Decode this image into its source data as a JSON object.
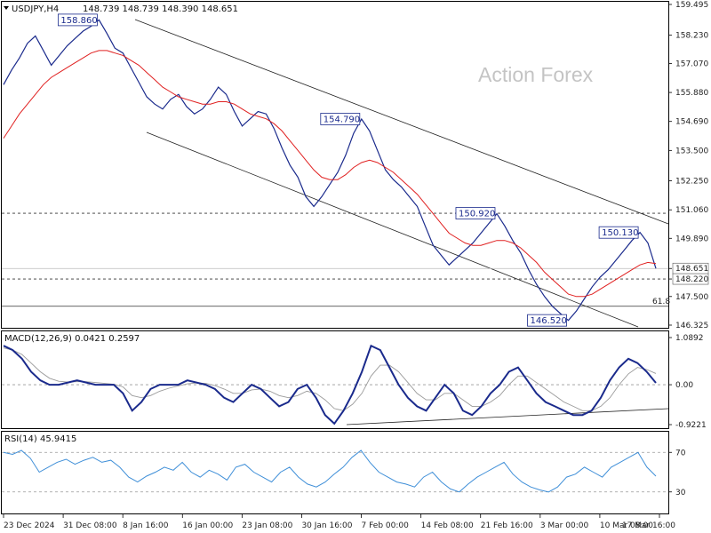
{
  "chart_data": {
    "type": "line",
    "symbol_header": "USDJPY,H4",
    "ohlc_header": "148.739 148.739 148.390 148.651",
    "watermark": "Action Forex",
    "x_labels": [
      "23 Dec 2024",
      "31 Dec 08:00",
      "8 Jan 16:00",
      "16 Jan 00:00",
      "23 Jan 08:00",
      "30 Jan 16:00",
      "7 Feb 00:00",
      "14 Feb 08:00",
      "21 Feb 16:00",
      "3 Mar 00:00",
      "10 Mar 08:00",
      "17 Mar 16:00"
    ],
    "price_axis": {
      "min": 146.325,
      "max": 159.495,
      "ticks": [
        "159.495",
        "158.230",
        "157.070",
        "155.880",
        "154.690",
        "153.500",
        "152.250",
        "151.060",
        "149.890",
        "148.651",
        "148.220",
        "147.500",
        "146.325"
      ],
      "current_price": "148.651",
      "levels": [
        {
          "value": 150.92,
          "label": "150.920",
          "style": "dashed"
        },
        {
          "value": 148.22,
          "label": "148.220",
          "style": "dashed"
        },
        {
          "value": 147.1,
          "label": "61.8",
          "style": "solid"
        }
      ]
    },
    "annotations": [
      {
        "label": "158.860",
        "value": 158.86
      },
      {
        "label": "154.790",
        "value": 154.79
      },
      {
        "label": "150.920",
        "value": 150.92
      },
      {
        "label": "150.130",
        "value": 150.13
      },
      {
        "label": "146.520",
        "value": 146.52
      }
    ],
    "series": [
      {
        "name": "",
        "values": [
          156.2,
          156.8,
          157.3,
          157.9,
          158.2,
          157.6,
          157.0,
          157.4,
          157.8,
          158.1,
          158.4,
          158.6,
          158.86,
          158.3,
          157.7,
          157.5,
          156.9,
          156.3,
          155.7,
          155.4,
          155.2,
          155.6,
          155.8,
          155.3,
          155.0,
          155.2,
          155.6,
          156.1,
          155.8,
          155.1,
          154.5,
          154.8,
          155.1,
          155.0,
          154.4,
          153.6,
          152.9,
          152.4,
          151.6,
          151.2,
          151.6,
          152.1,
          152.6,
          153.3,
          154.2,
          154.79,
          154.3,
          153.5,
          152.7,
          152.3,
          152.0,
          151.6,
          151.2,
          150.4,
          149.6,
          149.2,
          148.8,
          149.1,
          149.4,
          149.7,
          150.1,
          150.5,
          150.9,
          150.4,
          149.8,
          149.3,
          148.6,
          148.0,
          147.5,
          147.1,
          146.8,
          146.52,
          146.9,
          147.4,
          147.9,
          148.3,
          148.6,
          149.0,
          149.4,
          149.8,
          150.13,
          149.7,
          148.651
        ]
      },
      {
        "name": "",
        "values": [
          154.0,
          154.5,
          155.0,
          155.4,
          155.8,
          156.2,
          156.5,
          156.7,
          156.9,
          157.1,
          157.3,
          157.5,
          157.6,
          157.6,
          157.5,
          157.4,
          157.2,
          157.0,
          156.7,
          156.4,
          156.1,
          155.9,
          155.7,
          155.6,
          155.5,
          155.4,
          155.4,
          155.5,
          155.5,
          155.4,
          155.2,
          155.0,
          154.9,
          154.8,
          154.6,
          154.3,
          153.9,
          153.5,
          153.1,
          152.7,
          152.4,
          152.3,
          152.3,
          152.5,
          152.8,
          153.0,
          153.1,
          153.0,
          152.8,
          152.6,
          152.3,
          152.0,
          151.7,
          151.3,
          150.9,
          150.5,
          150.1,
          149.9,
          149.7,
          149.6,
          149.6,
          149.7,
          149.8,
          149.8,
          149.7,
          149.5,
          149.2,
          148.9,
          148.5,
          148.2,
          147.9,
          147.6,
          147.5,
          147.5,
          147.6,
          147.8,
          148.0,
          148.2,
          148.4,
          148.6,
          148.8,
          148.9,
          148.85
        ]
      }
    ],
    "macd": {
      "header": "MACD(12,26,9) 0.0421 0.2597",
      "ticks": [
        "1.0892",
        "0.00",
        "-0.9221"
      ],
      "min": -0.9221,
      "max": 1.0892,
      "macd_line": [
        0.9,
        0.8,
        0.6,
        0.3,
        0.1,
        0.0,
        0.0,
        0.05,
        0.1,
        0.05,
        0.0,
        0.0,
        0.0,
        -0.2,
        -0.6,
        -0.4,
        -0.1,
        0.0,
        0.0,
        0.0,
        0.1,
        0.05,
        0.0,
        -0.1,
        -0.3,
        -0.4,
        -0.2,
        0.0,
        -0.1,
        -0.3,
        -0.5,
        -0.4,
        -0.1,
        0.0,
        -0.3,
        -0.7,
        -0.9,
        -0.6,
        -0.2,
        0.3,
        0.9,
        0.8,
        0.4,
        0.0,
        -0.3,
        -0.5,
        -0.6,
        -0.3,
        0.0,
        -0.2,
        -0.6,
        -0.7,
        -0.5,
        -0.2,
        0.0,
        0.3,
        0.4,
        0.1,
        -0.2,
        -0.4,
        -0.5,
        -0.6,
        -0.7,
        -0.7,
        -0.6,
        -0.3,
        0.1,
        0.4,
        0.6,
        0.5,
        0.3,
        0.0421
      ],
      "signal_line": [
        0.85,
        0.8,
        0.7,
        0.5,
        0.3,
        0.15,
        0.08,
        0.06,
        0.07,
        0.07,
        0.05,
        0.03,
        0.01,
        -0.05,
        -0.25,
        -0.3,
        -0.25,
        -0.15,
        -0.08,
        -0.03,
        0.02,
        0.04,
        0.03,
        -0.02,
        -0.1,
        -0.2,
        -0.2,
        -0.12,
        -0.1,
        -0.15,
        -0.25,
        -0.3,
        -0.25,
        -0.15,
        -0.2,
        -0.35,
        -0.55,
        -0.6,
        -0.45,
        -0.2,
        0.2,
        0.45,
        0.45,
        0.3,
        0.05,
        -0.2,
        -0.35,
        -0.35,
        -0.2,
        -0.2,
        -0.35,
        -0.5,
        -0.5,
        -0.4,
        -0.25,
        0.0,
        0.2,
        0.2,
        0.05,
        -0.1,
        -0.25,
        -0.4,
        -0.5,
        -0.6,
        -0.6,
        -0.5,
        -0.3,
        0.0,
        0.25,
        0.4,
        0.35,
        0.2597
      ]
    },
    "rsi": {
      "header": "RSI(14) 45.9415",
      "ticks": [
        "70",
        "30"
      ],
      "min": 10,
      "max": 90,
      "values": [
        70,
        68,
        72,
        64,
        50,
        55,
        60,
        63,
        58,
        62,
        65,
        60,
        62,
        55,
        45,
        40,
        46,
        50,
        55,
        52,
        60,
        50,
        45,
        52,
        48,
        42,
        55,
        58,
        50,
        45,
        40,
        50,
        55,
        45,
        38,
        35,
        40,
        48,
        55,
        65,
        72,
        60,
        50,
        45,
        40,
        38,
        35,
        45,
        50,
        40,
        33,
        30,
        38,
        45,
        50,
        55,
        60,
        48,
        40,
        35,
        32,
        30,
        35,
        45,
        48,
        55,
        50,
        45,
        55,
        60,
        65,
        70,
        55,
        45.94
      ]
    }
  }
}
